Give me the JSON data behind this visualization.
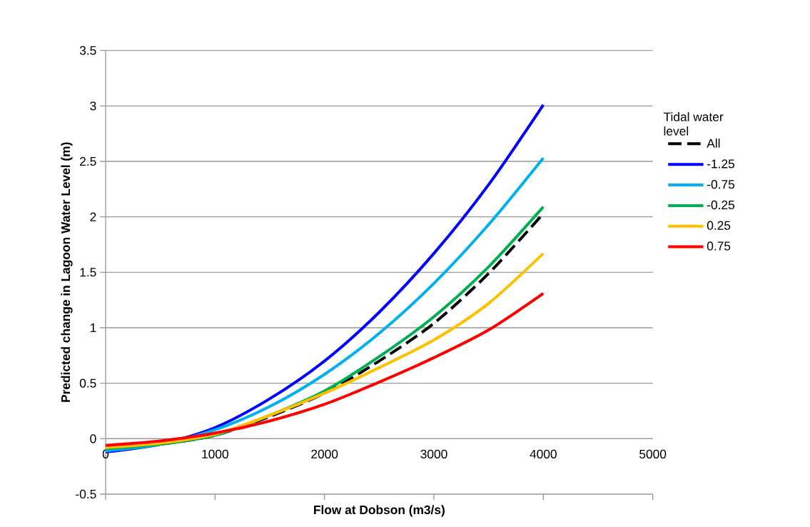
{
  "chart_data": {
    "type": "line",
    "xlabel": "Flow at Dobson (m3/s)",
    "ylabel": "Predicted change in Lagoon Water Level (m)",
    "legend_title": "Tidal water level",
    "x": [
      0,
      500,
      1000,
      1500,
      2000,
      2500,
      3000,
      3500,
      4000
    ],
    "series": [
      {
        "name": "All",
        "color": "#000000",
        "line_style": "dashed",
        "values": [
          -0.1,
          -0.05,
          0.03,
          0.2,
          0.41,
          0.7,
          1.04,
          1.49,
          2.03
        ]
      },
      {
        "name": "-1.25",
        "color": "#0000ff",
        "values": [
          -0.12,
          -0.05,
          0.1,
          0.36,
          0.7,
          1.14,
          1.67,
          2.29,
          3.01
        ]
      },
      {
        "name": "-0.75",
        "color": "#00b0f0",
        "values": [
          -0.11,
          -0.05,
          0.08,
          0.29,
          0.58,
          0.95,
          1.4,
          1.93,
          2.53
        ]
      },
      {
        "name": "-0.25",
        "color": "#00b050",
        "values": [
          -0.09,
          -0.05,
          0.03,
          0.21,
          0.43,
          0.74,
          1.1,
          1.55,
          2.09
        ]
      },
      {
        "name": "0.25",
        "color": "#ffc000",
        "values": [
          -0.08,
          -0.04,
          0.04,
          0.21,
          0.41,
          0.64,
          0.89,
          1.22,
          1.67
        ]
      },
      {
        "name": "0.75",
        "color": "#ff0000",
        "values": [
          -0.06,
          -0.02,
          0.05,
          0.16,
          0.31,
          0.51,
          0.73,
          0.98,
          1.31
        ]
      }
    ],
    "xlim": [
      0,
      5000
    ],
    "ylim": [
      -0.5,
      3.5
    ],
    "xticks": [
      0,
      1000,
      2000,
      3000,
      4000,
      5000
    ],
    "yticks": [
      -0.5,
      0,
      0.5,
      1,
      1.5,
      2,
      2.5,
      3,
      3.5
    ],
    "grid": "y",
    "legend": "right",
    "line_style": "solid",
    "marker": "none"
  }
}
